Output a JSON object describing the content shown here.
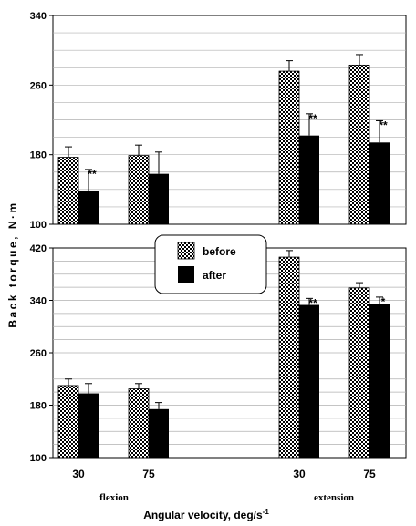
{
  "chart_data": {
    "type": "bar",
    "ylabel": "Back torque, N·m",
    "xlabel": "Angular velocity, deg/s",
    "xlabel_sup": "-1",
    "tick_labels": [
      "30",
      "75",
      "30",
      "75"
    ],
    "group_labels": [
      "flexion",
      "extension"
    ],
    "legend": {
      "placement": "center-left",
      "entries": [
        "before",
        "after"
      ]
    },
    "colors": {
      "before_fill": "#ffffff",
      "before_pattern": "#000000",
      "after": "#000000",
      "grid": "#b0b0b0"
    },
    "panels": [
      {
        "ylim": [
          100,
          340
        ],
        "yticks": [
          100,
          180,
          260,
          340
        ],
        "grid": true,
        "series": [
          {
            "name": "before",
            "values": [
              177,
              179,
              276,
              283
            ],
            "errors": [
              12,
              12,
              12,
              12
            ]
          },
          {
            "name": "after",
            "values": [
              138,
              158,
              202,
              194
            ],
            "errors": [
              25,
              25,
              25,
              25
            ]
          }
        ],
        "significance": [
          "**",
          "",
          "**",
          "**"
        ]
      },
      {
        "ylim": [
          100,
          420
        ],
        "yticks": [
          100,
          180,
          260,
          340,
          420
        ],
        "grid": true,
        "series": [
          {
            "name": "before",
            "values": [
              210,
              205,
              406,
              359
            ],
            "errors": [
              10,
              8,
              10,
              8
            ]
          },
          {
            "name": "after",
            "values": [
              198,
              174,
              333,
              335
            ],
            "errors": [
              15,
              10,
              10,
              10
            ]
          }
        ],
        "significance": [
          "",
          "",
          "**",
          "*"
        ]
      }
    ]
  }
}
